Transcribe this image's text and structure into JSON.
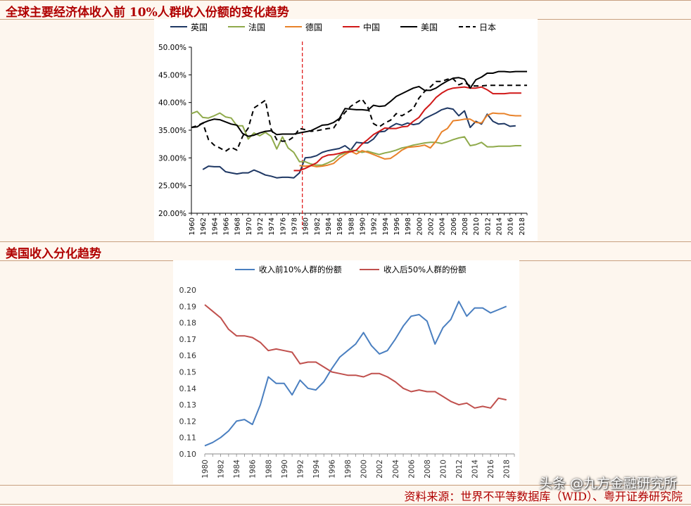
{
  "titles": {
    "chart1": "全球主要经济体收入前 10%人群收入份额的变化趋势",
    "chart2": "美国收入分化趋势"
  },
  "footer": {
    "source": "资料来源：世界不平等数据库（WID）、粤开证券研究院"
  },
  "watermark": "头条 @九方金融研究所",
  "chart_data": [
    {
      "type": "line",
      "title": "全球主要经济体收入前 10%人群收入份额的变化趋势",
      "xlabel": "",
      "ylabel": "",
      "xlim": [
        1960,
        2019
      ],
      "ylim": [
        20,
        50
      ],
      "y_ticks": [
        "20.00%",
        "25.00%",
        "30.00%",
        "35.00%",
        "40.00%",
        "45.00%",
        "50.00%"
      ],
      "y_tick_values": [
        20,
        25,
        30,
        35,
        40,
        45,
        50
      ],
      "x_ticks": [
        "1960",
        "1962",
        "1964",
        "1966",
        "1968",
        "1970",
        "1972",
        "1974",
        "1976",
        "1978",
        "1980",
        "1982",
        "1984",
        "1986",
        "1988",
        "1990",
        "1992",
        "1994",
        "1996",
        "1998",
        "2000",
        "2002",
        "2004",
        "2006",
        "2008",
        "2010",
        "2012",
        "2014",
        "2016",
        "2018"
      ],
      "annotation": {
        "x": 1979.5,
        "style": "red dashed vertical line"
      },
      "legend_position": "top",
      "colors": {
        "英国": "#1f3864",
        "法国": "#8faa4b",
        "德国": "#e8822a",
        "中国": "#d01818",
        "美国": "#000000",
        "日本": "#000000"
      },
      "series": [
        {
          "name": "英国",
          "start": 1962,
          "values": [
            27.9,
            28.5,
            28.4,
            28.4,
            27.5,
            27.3,
            27.1,
            27.3,
            27.3,
            27.8,
            27.4,
            26.9,
            26.7,
            26.4,
            26.5,
            26.5,
            26.4,
            27.3,
            30.0,
            30.1,
            30.4,
            31.0,
            31.3,
            31.5,
            31.7,
            32.2,
            31.4,
            32.8,
            32.7,
            32.7,
            33.4,
            34.7,
            34.8,
            35.6,
            36.2,
            35.9,
            36.3,
            36.0,
            36.2,
            37.1,
            37.6,
            38.1,
            38.7,
            39.0,
            38.8,
            37.6,
            38.5,
            35.5,
            36.6,
            36.1,
            37.9,
            36.6,
            36.1,
            36.2,
            35.7,
            35.8
          ]
        },
        {
          "name": "法国",
          "start": 1960,
          "values": [
            38.0,
            38.4,
            37.3,
            37.2,
            37.6,
            38.1,
            37.4,
            37.2,
            35.8,
            35.8,
            33.4,
            34.5,
            34.0,
            34.6,
            33.9,
            31.6,
            33.8,
            31.8,
            31.0,
            29.3,
            29.3,
            28.9,
            28.7,
            28.7,
            29.1,
            29.6,
            30.5,
            30.9,
            31.4,
            31.3,
            31.0,
            31.2,
            30.9,
            30.6,
            30.9,
            31.1,
            31.4,
            31.8,
            32.0,
            32.3,
            32.5,
            32.7,
            32.8,
            32.8,
            32.6,
            32.9,
            33.3,
            33.6,
            33.8,
            32.2,
            32.4,
            32.8,
            32.0,
            32.0,
            32.1,
            32.1,
            32.1,
            32.2,
            32.2
          ]
        },
        {
          "name": "德国",
          "start": 1979,
          "values": [
            28.6,
            28.5,
            28.6,
            28.4,
            28.5,
            28.7,
            29.0,
            29.9,
            30.6,
            31.2,
            30.7,
            31.3,
            31.0,
            30.6,
            30.2,
            29.8,
            29.9,
            30.6,
            31.4,
            31.9,
            32.0,
            32.1,
            32.3,
            31.8,
            33.0,
            34.7,
            35.3,
            36.7,
            36.8,
            37.0,
            37.0,
            36.4,
            36.3,
            37.7,
            38.1,
            38.0,
            38.0,
            37.7,
            37.6,
            37.6
          ]
        },
        {
          "name": "中国",
          "start": 1978,
          "values": [
            27.7,
            27.7,
            28.1,
            28.6,
            29.1,
            30.1,
            30.5,
            30.6,
            30.8,
            31.1,
            31.1,
            31.4,
            32.5,
            33.3,
            34.2,
            34.8,
            35.4,
            35.3,
            35.3,
            35.6,
            35.7,
            36.6,
            37.3,
            38.7,
            39.7,
            40.9,
            41.7,
            42.3,
            42.6,
            42.7,
            42.8,
            42.6,
            42.6,
            42.8,
            42.3,
            41.6,
            41.6,
            41.6,
            41.7,
            41.7,
            41.7
          ]
        },
        {
          "name": "美国",
          "start": 1960,
          "values": [
            35.5,
            35.6,
            36.3,
            36.7,
            37.0,
            36.9,
            36.5,
            36.1,
            35.9,
            34.4,
            33.9,
            34.1,
            34.5,
            34.8,
            34.9,
            34.2,
            34.3,
            34.3,
            34.3,
            34.5,
            34.7,
            34.9,
            35.4,
            35.9,
            36.0,
            36.4,
            37.1,
            38.9,
            38.8,
            38.7,
            38.7,
            38.6,
            39.5,
            39.3,
            39.4,
            40.2,
            41.1,
            41.6,
            42.1,
            42.6,
            42.9,
            42.2,
            42.2,
            42.6,
            43.3,
            43.9,
            44.4,
            44.5,
            44.2,
            42.6,
            44.1,
            44.6,
            45.3,
            45.3,
            45.6,
            45.6,
            45.5,
            45.6,
            45.6,
            45.6
          ]
        },
        {
          "name": "日本",
          "start": 1960,
          "values": [
            35.5,
            35.8,
            36.3,
            33.3,
            32.3,
            31.8,
            31.2,
            31.9,
            31.4,
            33.9,
            35.4,
            39.0,
            39.7,
            40.4,
            35.2,
            33.3,
            33.0,
            33.1,
            33.8,
            35.3,
            35.1,
            34.8,
            34.9,
            35.1,
            35.3,
            35.4,
            36.9,
            38.2,
            39.3,
            40.0,
            40.6,
            39.2,
            36.2,
            35.6,
            36.3,
            36.8,
            38.0,
            37.6,
            38.2,
            38.9,
            40.8,
            42.0,
            42.8,
            43.8,
            43.8,
            44.2,
            44.3,
            43.2,
            43.6,
            43.0,
            43.0,
            43.0,
            43.1,
            43.1,
            43.1,
            43.1,
            43.1,
            43.1,
            43.1,
            43.1
          ]
        }
      ]
    },
    {
      "type": "line",
      "title": "美国收入分化趋势",
      "xlabel": "",
      "ylabel": "",
      "xlim": [
        1980,
        2019
      ],
      "ylim": [
        0.1,
        0.2
      ],
      "y_ticks": [
        "0.10",
        "0.11",
        "0.12",
        "0.13",
        "0.14",
        "0.15",
        "0.16",
        "0.17",
        "0.18",
        "0.19",
        "0.20"
      ],
      "y_tick_values": [
        0.1,
        0.11,
        0.12,
        0.13,
        0.14,
        0.15,
        0.16,
        0.17,
        0.18,
        0.19,
        0.2
      ],
      "x_ticks": [
        "1980",
        "1982",
        "1984",
        "1986",
        "1988",
        "1990",
        "1992",
        "1994",
        "1996",
        "1998",
        "2000",
        "2002",
        "2004",
        "2006",
        "2008",
        "2010",
        "2012",
        "2014",
        "2016",
        "2018"
      ],
      "legend_position": "top",
      "colors": {
        "收入前10%人群的份额": "#4a7fc0",
        "收入后50%人群的份额": "#c0504d"
      },
      "x": [
        1980,
        1981,
        1982,
        1983,
        1984,
        1985,
        1986,
        1987,
        1988,
        1989,
        1990,
        1991,
        1992,
        1993,
        1994,
        1995,
        1996,
        1997,
        1998,
        1999,
        2000,
        2001,
        2002,
        2003,
        2004,
        2005,
        2006,
        2007,
        2008,
        2009,
        2010,
        2011,
        2012,
        2013,
        2014,
        2015,
        2016,
        2017,
        2018
      ],
      "series": [
        {
          "name": "收入前10%人群的份额",
          "values": [
            0.105,
            0.107,
            0.11,
            0.114,
            0.12,
            0.121,
            0.118,
            0.13,
            0.147,
            0.143,
            0.143,
            0.136,
            0.145,
            0.14,
            0.139,
            0.144,
            0.152,
            0.159,
            0.163,
            0.167,
            0.174,
            0.166,
            0.161,
            0.163,
            0.17,
            0.178,
            0.184,
            0.185,
            0.181,
            0.167,
            0.177,
            0.182,
            0.193,
            0.184,
            0.189,
            0.189,
            0.186,
            0.188,
            0.19
          ]
        },
        {
          "name": "收入后50%人群的份额",
          "values": [
            0.191,
            0.187,
            0.183,
            0.176,
            0.172,
            0.172,
            0.171,
            0.168,
            0.163,
            0.164,
            0.163,
            0.162,
            0.155,
            0.156,
            0.156,
            0.153,
            0.15,
            0.149,
            0.148,
            0.148,
            0.147,
            0.149,
            0.149,
            0.147,
            0.144,
            0.14,
            0.138,
            0.139,
            0.138,
            0.138,
            0.135,
            0.132,
            0.13,
            0.131,
            0.128,
            0.129,
            0.128,
            0.134,
            0.133
          ]
        }
      ]
    }
  ]
}
